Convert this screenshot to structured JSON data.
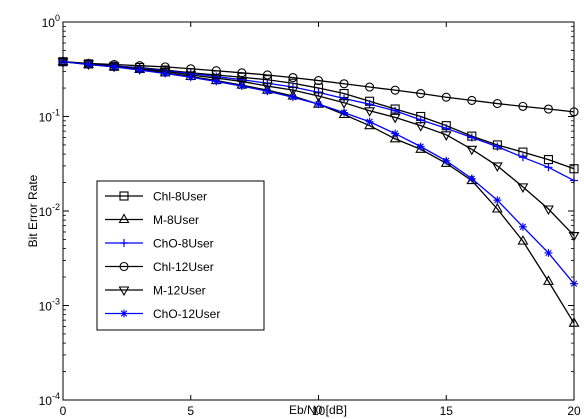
{
  "chart_data": {
    "type": "line",
    "title": "",
    "xlabel": "Eb/N0 [dB]",
    "ylabel": "Bit Error Rate",
    "x_scale": "linear",
    "y_scale": "log",
    "xlim": [
      0,
      20
    ],
    "ylim": [
      0.0001,
      1
    ],
    "x_ticks": [
      0,
      5,
      10,
      15,
      20
    ],
    "y_ticks": [
      {
        "value": 1,
        "base": "10",
        "exp": "0"
      },
      {
        "value": 0.1,
        "base": "10",
        "exp": "-1"
      },
      {
        "value": 0.01,
        "base": "10",
        "exp": "-2"
      },
      {
        "value": 0.001,
        "base": "10",
        "exp": "-3"
      },
      {
        "value": 0.0001,
        "base": "10",
        "exp": "-4"
      }
    ],
    "grid": false,
    "legend_position": "bottom-left",
    "x": [
      0,
      1,
      2,
      3,
      4,
      5,
      6,
      7,
      8,
      9,
      10,
      11,
      12,
      13,
      14,
      15,
      16,
      17,
      18,
      19,
      20
    ],
    "series": [
      {
        "name": "Chl-8User",
        "marker": "square",
        "color": "#000000",
        "values": [
          0.38,
          0.36,
          0.34,
          0.33,
          0.31,
          0.29,
          0.275,
          0.26,
          0.245,
          0.225,
          0.2,
          0.175,
          0.145,
          0.12,
          0.1,
          0.08,
          0.062,
          0.05,
          0.042,
          0.035,
          0.028
        ]
      },
      {
        "name": "M-8User",
        "marker": "triangle-up",
        "color": "#000000",
        "values": [
          0.38,
          0.355,
          0.335,
          0.315,
          0.29,
          0.265,
          0.24,
          0.215,
          0.19,
          0.165,
          0.135,
          0.105,
          0.08,
          0.058,
          0.045,
          0.032,
          0.021,
          0.0105,
          0.0048,
          0.0018,
          0.00065
        ]
      },
      {
        "name": "ChO-8User",
        "marker": "plus",
        "color": "#0000ff",
        "values": [
          0.38,
          0.36,
          0.345,
          0.325,
          0.305,
          0.285,
          0.265,
          0.245,
          0.225,
          0.205,
          0.18,
          0.155,
          0.135,
          0.115,
          0.092,
          0.075,
          0.06,
          0.048,
          0.037,
          0.029,
          0.021
        ]
      },
      {
        "name": "Chl-12User",
        "marker": "circle",
        "color": "#000000",
        "values": [
          0.38,
          0.365,
          0.355,
          0.345,
          0.335,
          0.32,
          0.305,
          0.29,
          0.275,
          0.258,
          0.24,
          0.222,
          0.205,
          0.19,
          0.175,
          0.16,
          0.148,
          0.137,
          0.128,
          0.12,
          0.112
        ]
      },
      {
        "name": "M-12User",
        "marker": "triangle-down",
        "color": "#000000",
        "values": [
          0.38,
          0.36,
          0.34,
          0.32,
          0.3,
          0.275,
          0.255,
          0.235,
          0.21,
          0.19,
          0.165,
          0.14,
          0.115,
          0.098,
          0.08,
          0.064,
          0.045,
          0.03,
          0.018,
          0.0105,
          0.0055
        ]
      },
      {
        "name": "ChO-12User",
        "marker": "star",
        "color": "#0000ff",
        "values": [
          0.38,
          0.355,
          0.335,
          0.31,
          0.285,
          0.26,
          0.235,
          0.21,
          0.185,
          0.16,
          0.135,
          0.11,
          0.088,
          0.066,
          0.048,
          0.034,
          0.022,
          0.013,
          0.0068,
          0.0036,
          0.0017
        ]
      }
    ]
  }
}
